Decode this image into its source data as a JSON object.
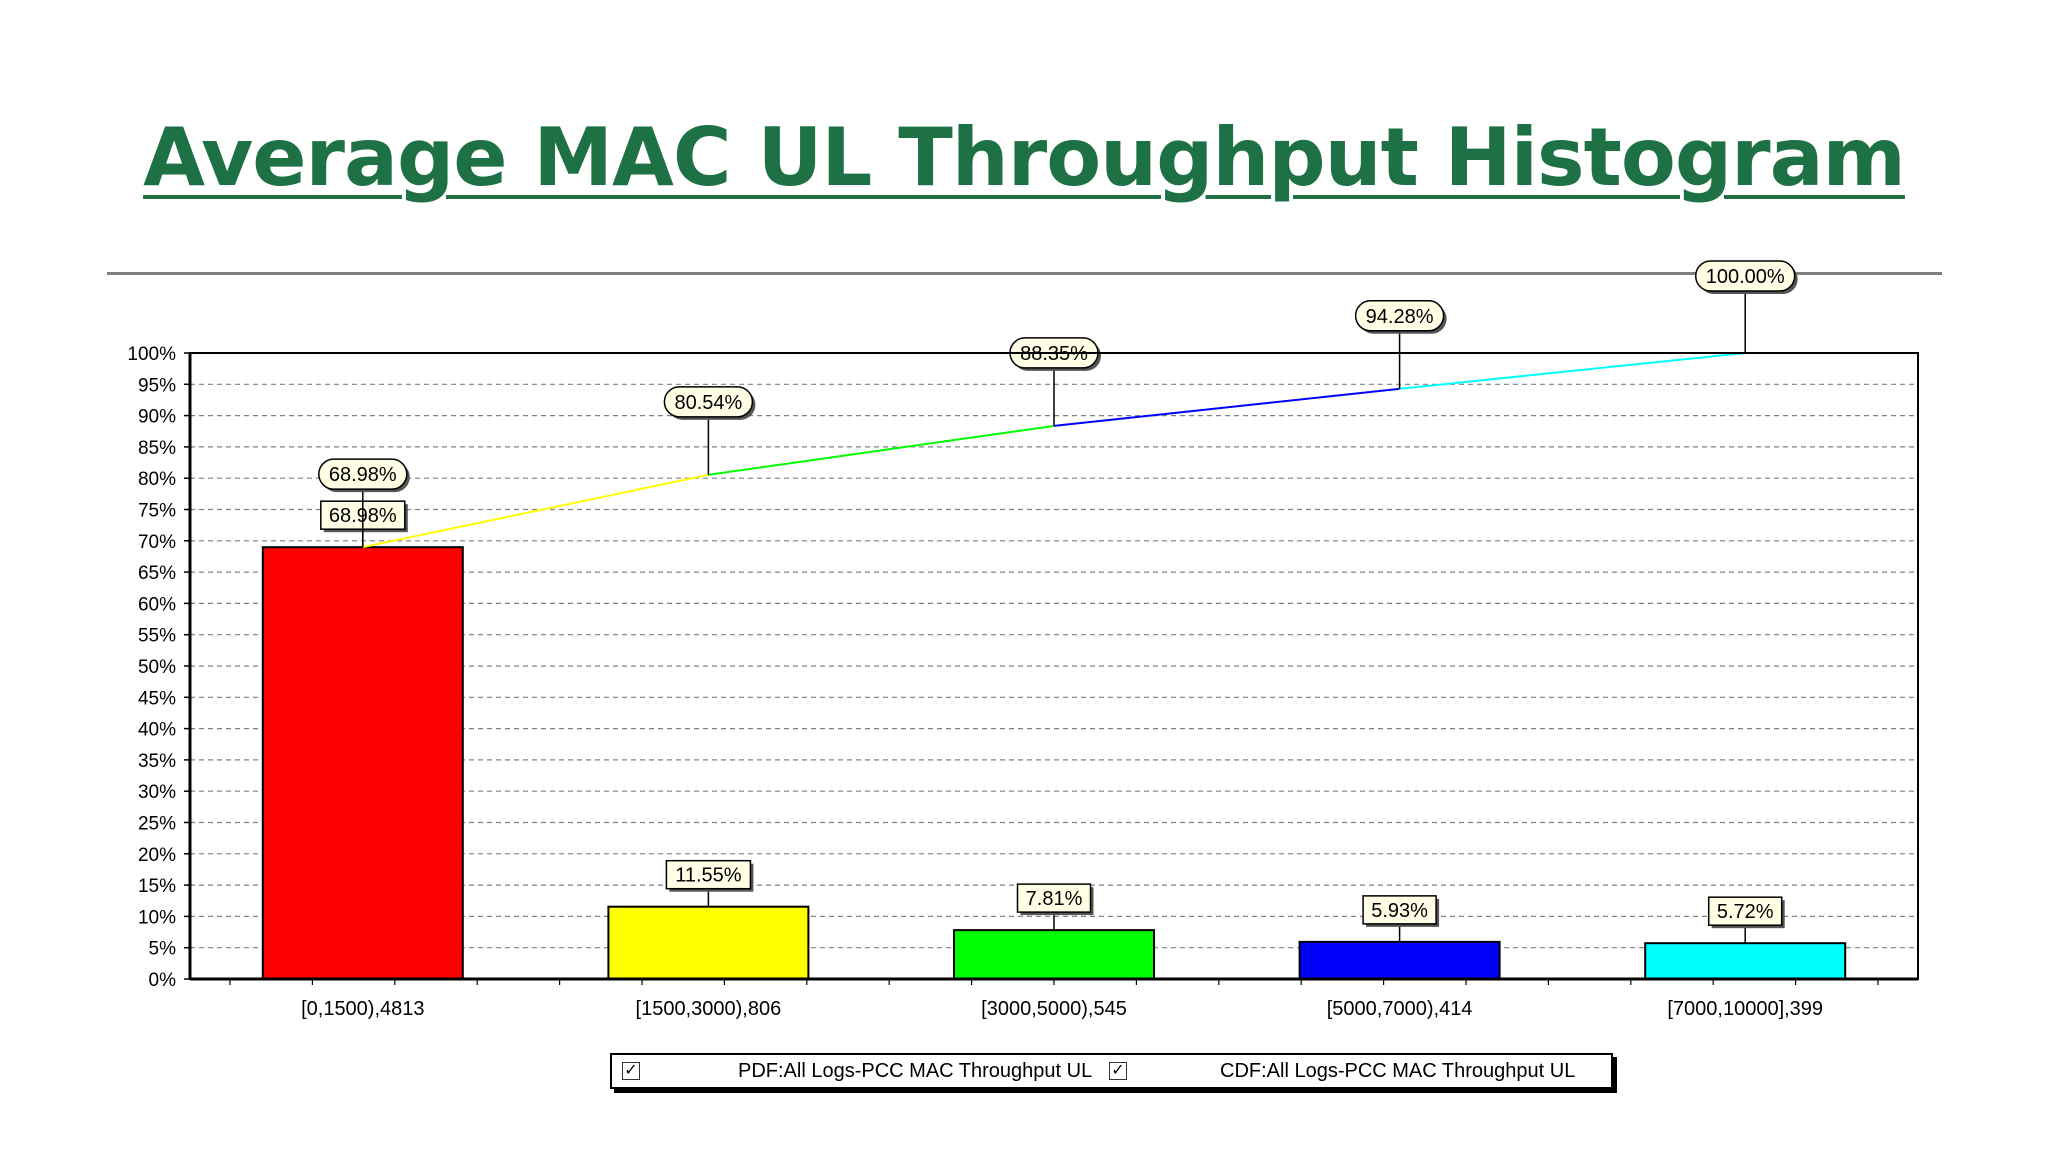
{
  "slide": {
    "title": "Average MAC UL Throughput Histogram"
  },
  "chart_data": {
    "type": "bar",
    "categories": [
      "[0,1500),4813",
      "[1500,3000),806",
      "[3000,5000),545",
      "[5000,7000),414",
      "[7000,10000],399"
    ],
    "series": [
      {
        "name": "PDF:All Logs-PCC MAC Throughput UL",
        "type": "bar",
        "values": [
          68.98,
          11.55,
          7.81,
          5.93,
          5.72
        ],
        "labels": [
          "68.98%",
          "11.55%",
          "7.81%",
          "5.93%",
          "5.72%"
        ],
        "colors": [
          "#ff0000",
          "#ffff00",
          "#00ff00",
          "#0000ff",
          "#00ffff"
        ]
      },
      {
        "name": "CDF:All Logs-PCC MAC Throughput UL",
        "type": "line",
        "values": [
          68.98,
          80.54,
          88.35,
          94.28,
          100.0
        ],
        "labels": [
          "68.98%",
          "80.54%",
          "88.35%",
          "94.28%",
          "100.00%"
        ],
        "segment_colors": [
          "#ffff00",
          "#00ff00",
          "#0000ff",
          "#00ffff"
        ]
      }
    ],
    "y_tick_labels": [
      "0%",
      "5%",
      "10%",
      "15%",
      "20%",
      "25%",
      "30%",
      "35%",
      "40%",
      "45%",
      "50%",
      "55%",
      "60%",
      "65%",
      "70%",
      "75%",
      "80%",
      "85%",
      "90%",
      "95%",
      "100%"
    ],
    "ylim": [
      0,
      100
    ],
    "y_unit": "%",
    "grid": "horizontal-dashed",
    "legend_position": "bottom-center",
    "legend_checked": [
      true,
      true
    ],
    "title": "",
    "xlabel": "",
    "ylabel": ""
  }
}
